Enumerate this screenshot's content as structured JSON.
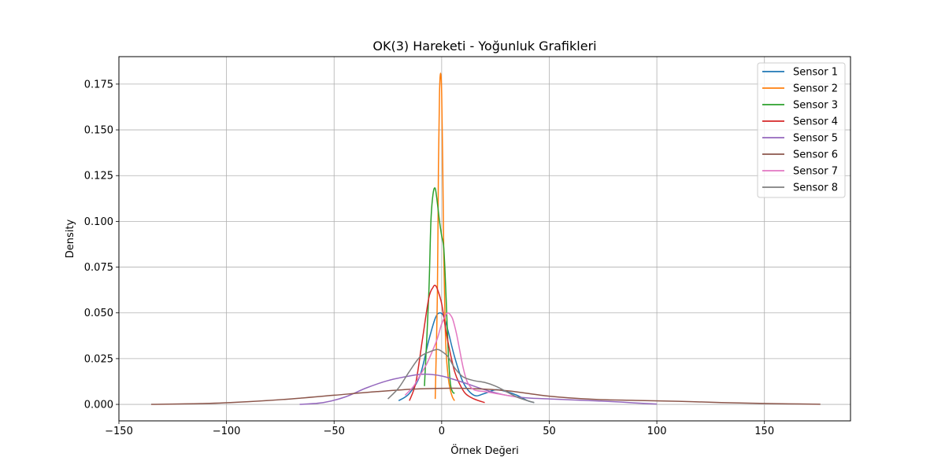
{
  "chart_data": {
    "type": "line",
    "title": "OK(3) Hareketi - Yoğunluk Grafikleri",
    "xlabel": "Örnek Değeri",
    "ylabel": "Density",
    "xlim": [
      -150,
      190
    ],
    "ylim": [
      -0.009,
      0.19
    ],
    "grid": true,
    "legend_position": "top-right",
    "xticks": [
      {
        "v": -150,
        "label": "−150"
      },
      {
        "v": -100,
        "label": "−100"
      },
      {
        "v": -50,
        "label": "−50"
      },
      {
        "v": 0,
        "label": "0"
      },
      {
        "v": 50,
        "label": "50"
      },
      {
        "v": 100,
        "label": "100"
      },
      {
        "v": 150,
        "label": "150"
      }
    ],
    "yticks": [
      {
        "v": 0.0,
        "label": "0.000"
      },
      {
        "v": 0.025,
        "label": "0.025"
      },
      {
        "v": 0.05,
        "label": "0.050"
      },
      {
        "v": 0.075,
        "label": "0.075"
      },
      {
        "v": 0.1,
        "label": "0.100"
      },
      {
        "v": 0.125,
        "label": "0.125"
      },
      {
        "v": 0.15,
        "label": "0.150"
      },
      {
        "v": 0.175,
        "label": "0.175"
      }
    ],
    "series": [
      {
        "name": "Sensor 1",
        "color": "#1f77b4",
        "x": [
          -20,
          -15,
          -10,
          -6,
          -3,
          -1,
          1,
          3,
          6,
          10,
          15,
          20,
          25,
          30,
          35,
          40,
          43
        ],
        "y": [
          0.002,
          0.006,
          0.016,
          0.035,
          0.047,
          0.05,
          0.048,
          0.04,
          0.026,
          0.012,
          0.005,
          0.006,
          0.008,
          0.007,
          0.005,
          0.002,
          0.001
        ]
      },
      {
        "name": "Sensor 2",
        "color": "#ff7f0e",
        "x": [
          -3,
          -2,
          -1.5,
          -1,
          -0.5,
          0,
          0.5,
          1,
          1.5,
          2,
          3,
          4,
          5,
          6
        ],
        "y": [
          0.003,
          0.06,
          0.13,
          0.17,
          0.181,
          0.17,
          0.13,
          0.08,
          0.05,
          0.03,
          0.015,
          0.008,
          0.004,
          0.002
        ]
      },
      {
        "name": "Sensor 3",
        "color": "#2ca02c",
        "x": [
          -8,
          -6,
          -5,
          -4,
          -3,
          -2,
          -1,
          0,
          1,
          2,
          3,
          4,
          5,
          6
        ],
        "y": [
          0.01,
          0.06,
          0.1,
          0.115,
          0.118,
          0.11,
          0.1,
          0.092,
          0.085,
          0.06,
          0.03,
          0.012,
          0.007,
          0.006
        ]
      },
      {
        "name": "Sensor 4",
        "color": "#d62728",
        "x": [
          -15,
          -12,
          -9,
          -6,
          -4,
          -3,
          -2,
          0,
          2,
          4,
          6,
          8,
          11,
          15,
          20
        ],
        "y": [
          0.002,
          0.012,
          0.035,
          0.058,
          0.064,
          0.065,
          0.063,
          0.055,
          0.04,
          0.028,
          0.018,
          0.012,
          0.006,
          0.003,
          0.001
        ]
      },
      {
        "name": "Sensor 5",
        "color": "#9467bd",
        "x": [
          -66,
          -55,
          -45,
          -35,
          -25,
          -15,
          -8,
          0,
          10,
          20,
          30,
          40,
          50,
          60,
          70,
          80,
          90,
          100
        ],
        "y": [
          0.0,
          0.001,
          0.004,
          0.009,
          0.013,
          0.0155,
          0.0165,
          0.0155,
          0.012,
          0.008,
          0.005,
          0.0035,
          0.003,
          0.0025,
          0.002,
          0.0015,
          0.0008,
          0.0002
        ]
      },
      {
        "name": "Sensor 6",
        "color": "#8c564b",
        "x": [
          -135,
          -110,
          -90,
          -70,
          -50,
          -30,
          -10,
          10,
          30,
          50,
          70,
          90,
          110,
          130,
          155,
          176
        ],
        "y": [
          0.0,
          0.0005,
          0.0015,
          0.003,
          0.005,
          0.007,
          0.0085,
          0.0088,
          0.0075,
          0.0045,
          0.0028,
          0.0022,
          0.0017,
          0.001,
          0.0004,
          0.0001
        ]
      },
      {
        "name": "Sensor 7",
        "color": "#e377c2",
        "x": [
          -17,
          -13,
          -10,
          -7,
          -4,
          -2,
          0,
          2,
          3,
          4,
          5,
          6,
          7,
          8,
          10,
          12,
          15,
          20,
          25,
          30,
          35
        ],
        "y": [
          0.005,
          0.01,
          0.016,
          0.022,
          0.03,
          0.036,
          0.044,
          0.049,
          0.05,
          0.049,
          0.047,
          0.043,
          0.038,
          0.032,
          0.02,
          0.012,
          0.008,
          0.007,
          0.006,
          0.005,
          0.004
        ]
      },
      {
        "name": "Sensor 8",
        "color": "#7f7f7f",
        "x": [
          -25,
          -20,
          -15,
          -10,
          -5,
          -2,
          0,
          3,
          6,
          10,
          15,
          20,
          25,
          30,
          35,
          40,
          43
        ],
        "y": [
          0.003,
          0.009,
          0.018,
          0.026,
          0.029,
          0.03,
          0.029,
          0.026,
          0.02,
          0.015,
          0.013,
          0.012,
          0.01,
          0.007,
          0.004,
          0.002,
          0.001
        ]
      }
    ]
  }
}
